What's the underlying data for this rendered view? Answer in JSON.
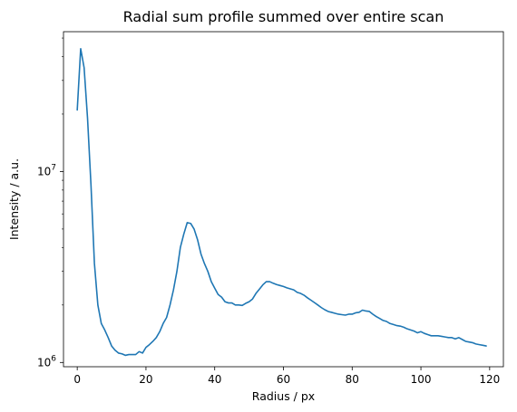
{
  "chart_data": {
    "type": "line",
    "title": "Radial sum profile summed over entire scan",
    "xlabel": "Radius / px",
    "ylabel": "Intensity / a.u.",
    "xlim": [
      -4,
      124
    ],
    "ylim": [
      950000,
      54000000
    ],
    "yscale": "log",
    "grid": false,
    "line_color": "#1f77b4",
    "x_ticks": [
      {
        "value": 0,
        "label": "0"
      },
      {
        "value": 20,
        "label": "20"
      },
      {
        "value": 40,
        "label": "40"
      },
      {
        "value": 60,
        "label": "60"
      },
      {
        "value": 80,
        "label": "80"
      },
      {
        "value": 100,
        "label": "100"
      },
      {
        "value": 120,
        "label": "120"
      }
    ],
    "y_ticks": [
      {
        "value": 1000000,
        "base": "10",
        "exp": "6"
      },
      {
        "value": 10000000,
        "base": "10",
        "exp": "7"
      }
    ],
    "series": [
      {
        "x": [
          0,
          1,
          2,
          3,
          4,
          5,
          6,
          7,
          8,
          9,
          10,
          11,
          12,
          13,
          14,
          15,
          16,
          17,
          18,
          19,
          20,
          21,
          22,
          23,
          24,
          25,
          26,
          27,
          28,
          29,
          30,
          31,
          32,
          33,
          34,
          35,
          36,
          37,
          38,
          39,
          40,
          41,
          42,
          43,
          44,
          45,
          46,
          47,
          48,
          49,
          50,
          51,
          52,
          53,
          54,
          55,
          56,
          57,
          58,
          59,
          60,
          61,
          62,
          63,
          64,
          65,
          66,
          67,
          68,
          69,
          70,
          71,
          72,
          73,
          74,
          75,
          76,
          77,
          78,
          79,
          80,
          81,
          82,
          83,
          84,
          85,
          86,
          87,
          88,
          89,
          90,
          91,
          92,
          93,
          94,
          95,
          96,
          97,
          98,
          99,
          100,
          101,
          102,
          103,
          104,
          105,
          106,
          107,
          108,
          109,
          110,
          111,
          112,
          113,
          114,
          115,
          116,
          117,
          118,
          119
        ],
        "values": [
          21000000,
          44000000,
          35000000,
          19000000,
          8500000,
          3300000,
          2000000,
          1600000,
          1480000,
          1350000,
          1220000,
          1160000,
          1120000,
          1110000,
          1090000,
          1100000,
          1100000,
          1100000,
          1140000,
          1120000,
          1200000,
          1240000,
          1290000,
          1350000,
          1450000,
          1600000,
          1720000,
          2000000,
          2400000,
          3000000,
          4000000,
          4700000,
          5400000,
          5350000,
          5000000,
          4400000,
          3700000,
          3300000,
          3000000,
          2650000,
          2450000,
          2270000,
          2200000,
          2080000,
          2050000,
          2050000,
          2000000,
          2000000,
          1990000,
          2040000,
          2080000,
          2150000,
          2300000,
          2420000,
          2550000,
          2650000,
          2650000,
          2600000,
          2560000,
          2530000,
          2500000,
          2460000,
          2430000,
          2400000,
          2330000,
          2300000,
          2250000,
          2180000,
          2120000,
          2060000,
          2000000,
          1940000,
          1890000,
          1850000,
          1830000,
          1810000,
          1790000,
          1780000,
          1770000,
          1790000,
          1790000,
          1820000,
          1830000,
          1880000,
          1860000,
          1850000,
          1790000,
          1740000,
          1700000,
          1660000,
          1640000,
          1600000,
          1580000,
          1560000,
          1550000,
          1530000,
          1500000,
          1480000,
          1460000,
          1430000,
          1450000,
          1420000,
          1400000,
          1380000,
          1380000,
          1380000,
          1370000,
          1360000,
          1350000,
          1350000,
          1330000,
          1350000,
          1320000,
          1290000,
          1280000,
          1270000,
          1250000,
          1240000,
          1230000,
          1220000
        ]
      }
    ]
  }
}
